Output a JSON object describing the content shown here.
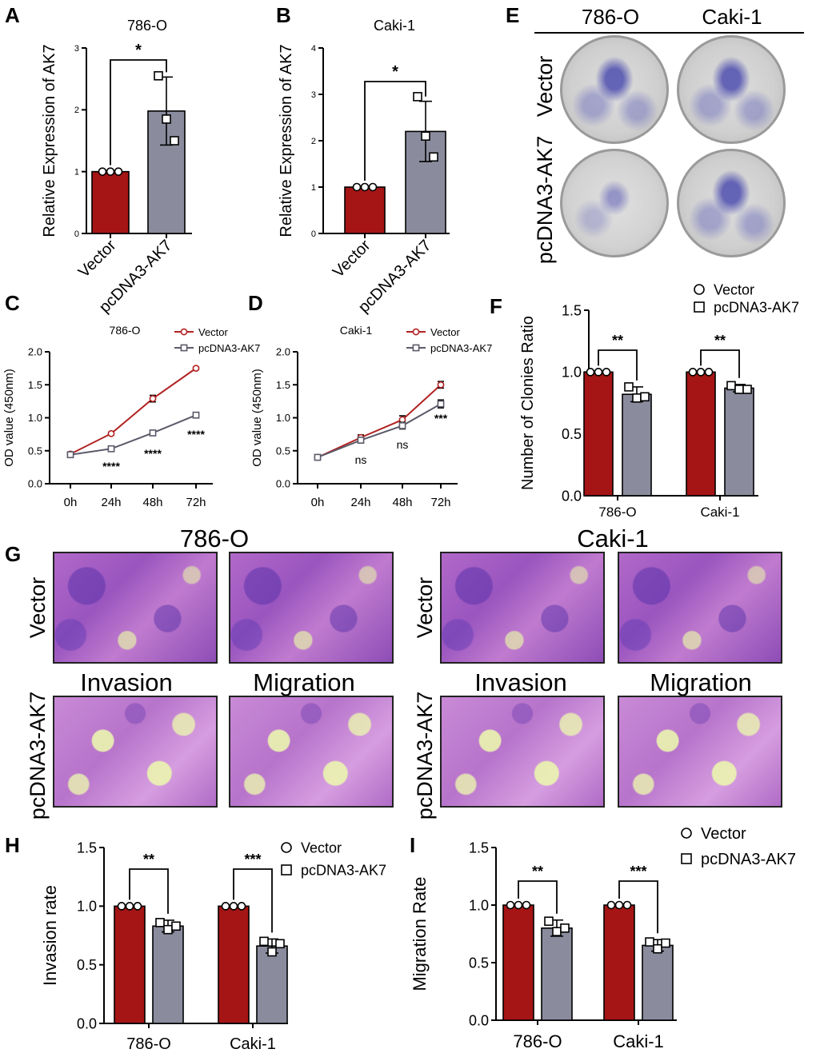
{
  "panel_letters": {
    "A": "A",
    "B": "B",
    "C": "C",
    "D": "D",
    "E": "E",
    "F": "F",
    "G": "G",
    "H": "H",
    "I": "I"
  },
  "colors": {
    "vector": "#a51515",
    "ak7": "#8a8c9e",
    "line_vector": "#b22222",
    "line_ak7": "#5a5a6a"
  },
  "panel_E": {
    "col_labels": [
      "786-O",
      "Caki-1"
    ],
    "row_labels": [
      "Vector",
      "pcDNA3-AK7"
    ]
  },
  "panel_G": {
    "group_titles": [
      "786-O",
      "Caki-1"
    ],
    "row_labels": [
      "Vector",
      "pcDNA3-AK7"
    ],
    "col_labels": [
      "Invasion",
      "Migration",
      "Invasion",
      "Migration"
    ]
  },
  "chart_data": [
    {
      "id": "A",
      "type": "bar",
      "title": "786-O",
      "ylabel": "Relative Expression of  AK7",
      "categories": [
        "Vector",
        "pcDNA3-AK7"
      ],
      "values": [
        1.0,
        1.98
      ],
      "errors": [
        0,
        0.55
      ],
      "points": [
        [
          1,
          1,
          1
        ],
        [
          2.55,
          1.85,
          1.5
        ]
      ],
      "ylim": [
        0,
        3
      ],
      "yticks": [
        "0",
        "1",
        "2",
        "3"
      ],
      "significance": "*"
    },
    {
      "id": "B",
      "type": "bar",
      "title": "Caki-1",
      "ylabel": "Relative Expression of  AK7",
      "categories": [
        "Vector",
        "pcDNA3-AK7"
      ],
      "values": [
        1.0,
        2.2
      ],
      "errors": [
        0,
        0.65
      ],
      "points": [
        [
          1,
          1,
          1
        ],
        [
          2.95,
          2.1,
          1.65
        ]
      ],
      "ylim": [
        0,
        4
      ],
      "yticks": [
        "0",
        "1",
        "2",
        "3",
        "4"
      ],
      "significance": "*"
    },
    {
      "id": "C",
      "type": "line",
      "title": "786-O",
      "ylabel": "OD value (450nm)",
      "x": [
        "0h",
        "24h",
        "48h",
        "72h"
      ],
      "ylim": [
        0,
        2.0
      ],
      "yticks": [
        "0.0",
        "0.5",
        "1.0",
        "1.5",
        "2.0"
      ],
      "series": [
        {
          "name": "Vector",
          "values": [
            0.45,
            0.76,
            1.29,
            1.75
          ],
          "errors": [
            0.02,
            0.02,
            0.05,
            0.02
          ]
        },
        {
          "name": "pcDNA3-AK7",
          "values": [
            0.44,
            0.53,
            0.77,
            1.04
          ],
          "errors": [
            0.02,
            0.02,
            0.02,
            0.03
          ]
        }
      ],
      "annotations": [
        "",
        "****",
        "****",
        "****"
      ]
    },
    {
      "id": "D",
      "type": "line",
      "title": "Caki-1",
      "ylabel": "OD value (450nm)",
      "x": [
        "0h",
        "24h",
        "48h",
        "72h"
      ],
      "ylim": [
        0,
        2.0
      ],
      "yticks": [
        "0.0",
        "0.5",
        "1.0",
        "1.5",
        "2.0"
      ],
      "series": [
        {
          "name": "Vector",
          "values": [
            0.4,
            0.7,
            0.97,
            1.5
          ],
          "errors": [
            0.02,
            0.04,
            0.06,
            0.05
          ]
        },
        {
          "name": "pcDNA3-AK7",
          "values": [
            0.4,
            0.66,
            0.88,
            1.21
          ],
          "errors": [
            0.02,
            0.04,
            0.05,
            0.06
          ]
        }
      ],
      "annotations": [
        "",
        "ns",
        "ns",
        "***"
      ]
    },
    {
      "id": "F",
      "type": "bar",
      "ylabel": "Number of Clonies Ratio",
      "categories": [
        "786-O",
        "Caki-1"
      ],
      "series_names": [
        "Vector",
        "pcDNA3-AK7"
      ],
      "values": [
        [
          1.0,
          0.82
        ],
        [
          1.0,
          0.87
        ]
      ],
      "errors": [
        [
          0,
          0.06
        ],
        [
          0,
          0.03
        ]
      ],
      "points": [
        [
          [
            1,
            1,
            1
          ],
          [
            0.88,
            0.79,
            0.8
          ]
        ],
        [
          [
            1,
            1,
            1
          ],
          [
            0.89,
            0.86,
            0.86
          ]
        ]
      ],
      "ylim": [
        0,
        1.5
      ],
      "yticks": [
        "0.0",
        "0.5",
        "1.0",
        "1.5"
      ],
      "significance": [
        "**",
        "**"
      ]
    },
    {
      "id": "H",
      "type": "bar",
      "ylabel": "Invasion rate",
      "categories": [
        "786-O",
        "Caki-1"
      ],
      "series_names": [
        "Vector",
        "pcDNA3-AK7"
      ],
      "values": [
        [
          1.0,
          0.83
        ],
        [
          1.0,
          0.66
        ]
      ],
      "errors": [
        [
          0,
          0.05
        ],
        [
          0,
          0.06
        ]
      ],
      "points": [
        [
          [
            1,
            1,
            1
          ],
          [
            0.86,
            0.8,
            0.83
          ]
        ],
        [
          [
            1,
            1,
            1
          ],
          [
            0.7,
            0.61,
            0.68
          ]
        ]
      ],
      "ylim": [
        0,
        1.5
      ],
      "yticks": [
        "0.0",
        "0.5",
        "1.0",
        "1.5"
      ],
      "significance": [
        "**",
        "***"
      ]
    },
    {
      "id": "I",
      "type": "bar",
      "ylabel": "Migration Rate",
      "categories": [
        "786-O",
        "Caki-1"
      ],
      "series_names": [
        "Vector",
        "pcDNA3-AK7"
      ],
      "values": [
        [
          1.0,
          0.8
        ],
        [
          1.0,
          0.65
        ]
      ],
      "errors": [
        [
          0,
          0.07
        ],
        [
          0,
          0.05
        ]
      ],
      "points": [
        [
          [
            1,
            1,
            1
          ],
          [
            0.86,
            0.77,
            0.8
          ]
        ],
        [
          [
            1,
            1,
            1
          ],
          [
            0.68,
            0.62,
            0.67
          ]
        ]
      ],
      "ylim": [
        0,
        1.5
      ],
      "yticks": [
        "0.0",
        "0.5",
        "1.0",
        "1.5"
      ],
      "significance": [
        "**",
        "***"
      ]
    }
  ]
}
